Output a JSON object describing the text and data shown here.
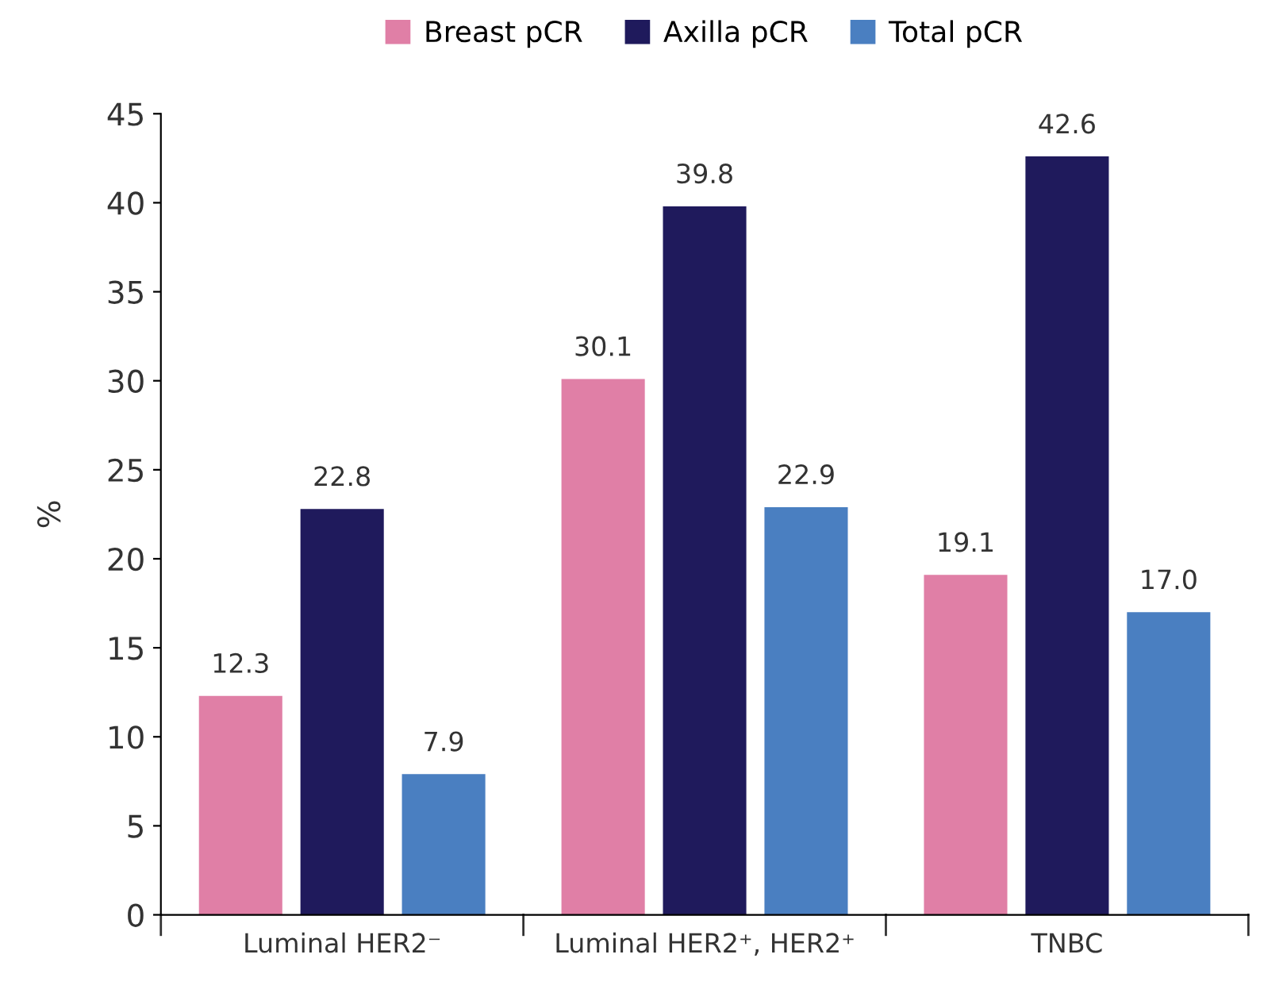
{
  "chart_data": {
    "type": "bar",
    "ylabel": "%",
    "categories": [
      "Luminal HER2⁻",
      "Luminal HER2⁺, HER2⁺",
      "TNBC"
    ],
    "series": [
      {
        "name": "Breast pCR",
        "color": "#e07fa6",
        "values": [
          12.3,
          30.1,
          19.1
        ]
      },
      {
        "name": "Axilla pCR",
        "color": "#1f1a5c",
        "values": [
          22.8,
          39.8,
          42.6
        ]
      },
      {
        "name": "Total pCR",
        "color": "#4a7fc1",
        "values": [
          7.9,
          22.9,
          17.0
        ],
        "value_labels": [
          "7.9",
          "22.9",
          "17.0"
        ]
      }
    ],
    "ylim": [
      0,
      45
    ],
    "yticks": [
      0,
      5,
      10,
      15,
      20,
      25,
      30,
      35,
      40,
      45
    ],
    "data_labels": true,
    "legend": "top",
    "grid": false
  }
}
